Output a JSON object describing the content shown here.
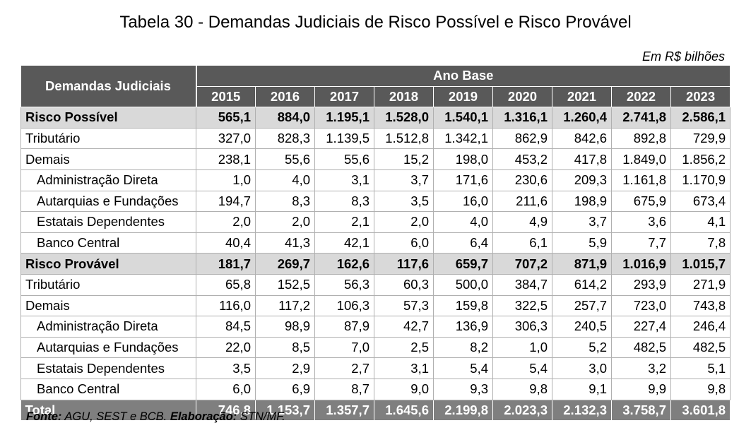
{
  "title": "Tabela 30 - Demandas Judiciais de Risco Possível e Risco Provável",
  "unit": "Em R$ bilhões",
  "header": {
    "row_label": "Demandas Judiciais",
    "group_label": "Ano Base",
    "years": [
      "2015",
      "2016",
      "2017",
      "2018",
      "2019",
      "2020",
      "2021",
      "2022",
      "2023"
    ]
  },
  "rows": [
    {
      "label": "Risco Possível",
      "values": [
        "565,1",
        "884,0",
        "1.195,1",
        "1.528,0",
        "1.540,1",
        "1.316,1",
        "1.260,4",
        "2.741,8",
        "2.586,1"
      ]
    },
    {
      "label": "Tributário",
      "values": [
        "327,0",
        "828,3",
        "1.139,5",
        "1.512,8",
        "1.342,1",
        "862,9",
        "842,6",
        "892,8",
        "729,9"
      ]
    },
    {
      "label": "Demais",
      "values": [
        "238,1",
        "55,6",
        "55,6",
        "15,2",
        "198,0",
        "453,2",
        "417,8",
        "1.849,0",
        "1.856,2"
      ]
    },
    {
      "label": "Administração Direta",
      "values": [
        "1,0",
        "4,0",
        "3,1",
        "3,7",
        "171,6",
        "230,6",
        "209,3",
        "1.161,8",
        "1.170,9"
      ]
    },
    {
      "label": "Autarquias e Fundações",
      "values": [
        "194,7",
        "8,3",
        "8,3",
        "3,5",
        "16,0",
        "211,6",
        "198,9",
        "675,9",
        "673,4"
      ]
    },
    {
      "label": "Estatais Dependentes",
      "values": [
        "2,0",
        "2,0",
        "2,1",
        "2,0",
        "4,0",
        "4,9",
        "3,7",
        "3,6",
        "4,1"
      ]
    },
    {
      "label": "Banco Central",
      "values": [
        "40,4",
        "41,3",
        "42,1",
        "6,0",
        "6,4",
        "6,1",
        "5,9",
        "7,7",
        "7,8"
      ]
    },
    {
      "label": "Risco Provável",
      "values": [
        "181,7",
        "269,7",
        "162,6",
        "117,6",
        "659,7",
        "707,2",
        "871,9",
        "1.016,9",
        "1.015,7"
      ]
    },
    {
      "label": "Tributário",
      "values": [
        "65,8",
        "152,5",
        "56,3",
        "60,3",
        "500,0",
        "384,7",
        "614,2",
        "293,9",
        "271,9"
      ]
    },
    {
      "label": "Demais",
      "values": [
        "116,0",
        "117,2",
        "106,3",
        "57,3",
        "159,8",
        "322,5",
        "257,7",
        "723,0",
        "743,8"
      ]
    },
    {
      "label": "Administração Direta",
      "values": [
        "84,5",
        "98,9",
        "87,9",
        "42,7",
        "136,9",
        "306,3",
        "240,5",
        "227,4",
        "246,4"
      ]
    },
    {
      "label": "Autarquias e Fundações",
      "values": [
        "22,0",
        "8,5",
        "7,0",
        "2,5",
        "8,2",
        "1,0",
        "5,2",
        "482,5",
        "482,5"
      ]
    },
    {
      "label": "Estatais Dependentes",
      "values": [
        "3,5",
        "2,9",
        "2,7",
        "3,1",
        "5,4",
        "5,4",
        "3,0",
        "3,2",
        "5,1"
      ]
    },
    {
      "label": "Banco Central",
      "values": [
        "6,0",
        "6,9",
        "8,7",
        "9,0",
        "9,3",
        "9,8",
        "9,1",
        "9,9",
        "9,8"
      ]
    },
    {
      "label": "Total",
      "values": [
        "746,8",
        "1.153,7",
        "1.357,7",
        "1.645,6",
        "2.199,8",
        "2.023,3",
        "2.132,3",
        "3.758,7",
        "3.601,8"
      ]
    }
  ],
  "source": {
    "fonte_label": "Fonte:",
    "fonte_text": " AGU, SEST e BCB. ",
    "elaboracao_label": "Elaboração:",
    "elaboracao_text": " STN/MF."
  }
}
